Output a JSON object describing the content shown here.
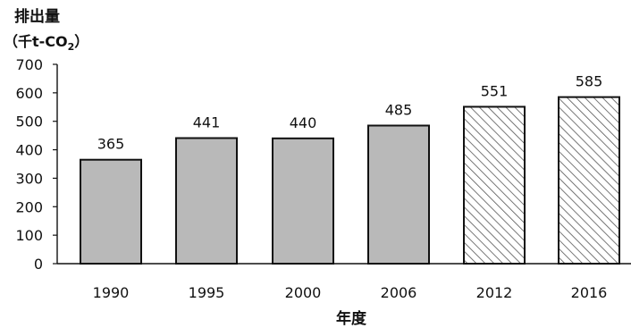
{
  "chart_data": {
    "type": "bar",
    "ylabel": "排出量",
    "yunit_prefix": "（千t-CO",
    "yunit_sub": "2",
    "yunit_suffix": "）",
    "xlabel": "年度",
    "categories": [
      "1990",
      "1995",
      "2000",
      "2006",
      "2012",
      "2016"
    ],
    "values": [
      365,
      441,
      440,
      485,
      551,
      585
    ],
    "bar_styles": [
      "solid",
      "solid",
      "solid",
      "solid",
      "hatched",
      "hatched"
    ],
    "ylim": [
      0,
      700
    ],
    "yticks": [
      0,
      100,
      200,
      300,
      400,
      500,
      600,
      700
    ],
    "grid": false,
    "colors": {
      "solid_fill": "#b9b9b9",
      "hatch_line": "#555555",
      "hatch_background": "#ffffff",
      "bar_stroke": "#111111",
      "axis": "#111111"
    }
  }
}
